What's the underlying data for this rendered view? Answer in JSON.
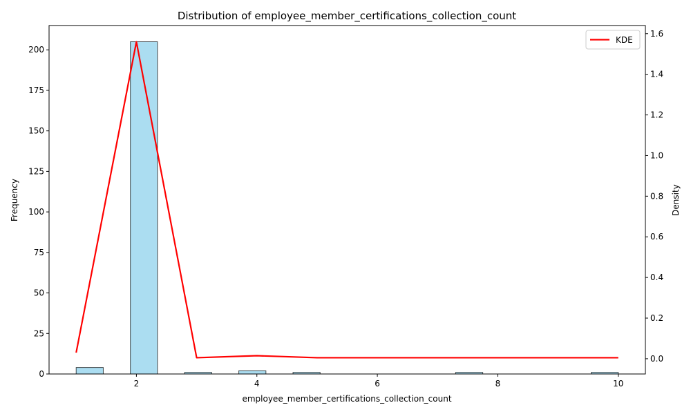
{
  "chart_data": {
    "type": "bar",
    "title": "Distribution of employee_member_certifications_collection_count",
    "xlabel": "employee_member_certifications_collection_count",
    "ylabel": "Frequency",
    "y2label": "Density",
    "xlim": [
      0.55,
      10.45
    ],
    "ylim": [
      0,
      215
    ],
    "y2lim": [
      -0.075,
      1.64
    ],
    "x_ticks": [
      2,
      4,
      6,
      8,
      10
    ],
    "y_ticks": [
      0,
      25,
      50,
      75,
      100,
      125,
      150,
      175,
      200
    ],
    "y2_ticks": [
      0.0,
      0.2,
      0.4,
      0.6,
      0.8,
      1.0,
      1.2,
      1.4,
      1.6
    ],
    "histogram": {
      "bins": [
        {
          "x0": 1.0,
          "x1": 1.45,
          "count": 4
        },
        {
          "x0": 1.9,
          "x1": 2.35,
          "count": 205
        },
        {
          "x0": 2.8,
          "x1": 3.25,
          "count": 1
        },
        {
          "x0": 3.7,
          "x1": 4.15,
          "count": 2
        },
        {
          "x0": 4.6,
          "x1": 5.05,
          "count": 1
        },
        {
          "x0": 7.3,
          "x1": 7.75,
          "count": 1
        },
        {
          "x0": 9.55,
          "x1": 10.0,
          "count": 1
        }
      ],
      "color": "#87CEEB",
      "edge_color": "#000000"
    },
    "series": [
      {
        "name": "KDE",
        "axis": "y2",
        "color": "#FF0000",
        "x": [
          1,
          2,
          3,
          4,
          5,
          6,
          7,
          8,
          9,
          10
        ],
        "values": [
          0.03,
          1.56,
          0.005,
          0.015,
          0.005,
          0.005,
          0.005,
          0.005,
          0.005,
          0.005
        ]
      }
    ],
    "legend_position": "top-right",
    "grid": false
  }
}
